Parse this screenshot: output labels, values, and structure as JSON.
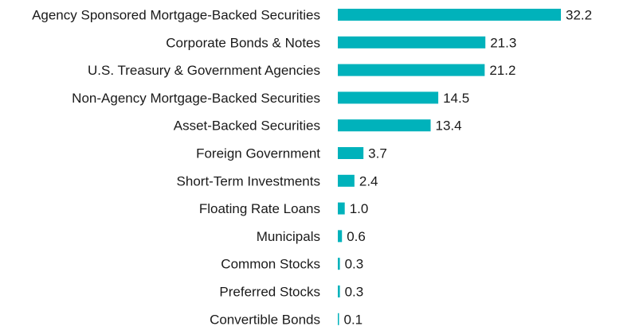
{
  "chart_data": {
    "type": "bar",
    "orientation": "horizontal",
    "title": "",
    "xlabel": "",
    "ylabel": "",
    "grid": false,
    "legend": "none",
    "xlim": [
      0,
      32.2
    ],
    "bar_color": "#00b2bb",
    "categories": [
      "Agency Sponsored Mortgage-Backed Securities",
      "Corporate Bonds & Notes",
      "U.S. Treasury & Government Agencies",
      "Non-Agency Mortgage-Backed Securities",
      "Asset-Backed Securities",
      "Foreign Government",
      "Short-Term Investments",
      "Floating Rate Loans",
      "Municipals",
      "Common Stocks",
      "Preferred Stocks",
      "Convertible Bonds"
    ],
    "values": [
      32.2,
      21.3,
      21.2,
      14.5,
      13.4,
      3.7,
      2.4,
      1.0,
      0.6,
      0.3,
      0.3,
      0.1
    ],
    "value_labels": [
      "32.2",
      "21.3",
      "21.2",
      "14.5",
      "13.4",
      "3.7",
      "2.4",
      "1.0",
      "0.6",
      "0.3",
      "0.3",
      "0.1"
    ]
  }
}
